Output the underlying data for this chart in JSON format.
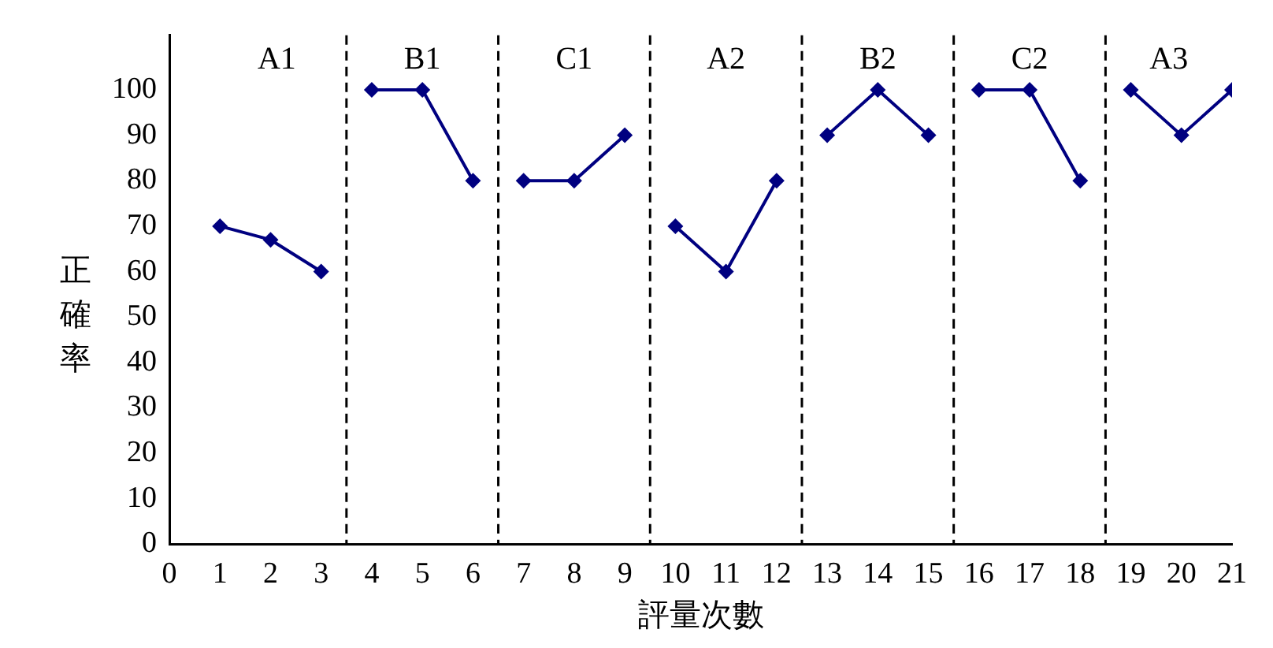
{
  "chart_data": {
    "type": "line",
    "ylabel": "正確率",
    "xlabel": "評量次數",
    "xlim": [
      0,
      21
    ],
    "xticks": [
      0,
      1,
      2,
      3,
      4,
      5,
      6,
      7,
      8,
      9,
      10,
      11,
      12,
      13,
      14,
      15,
      16,
      17,
      18,
      19,
      20,
      21
    ],
    "ylim": [
      0,
      112
    ],
    "yticks": [
      0,
      10,
      20,
      30,
      40,
      50,
      60,
      70,
      80,
      90,
      100
    ],
    "series": [
      {
        "color": "#000080",
        "x": [
          1,
          2,
          3
        ],
        "values": [
          70,
          67,
          60
        ]
      },
      {
        "color": "#000080",
        "x": [
          4,
          5,
          6
        ],
        "values": [
          100,
          100,
          80
        ]
      },
      {
        "color": "#000080",
        "x": [
          7,
          8,
          9
        ],
        "values": [
          80,
          80,
          90
        ]
      },
      {
        "color": "#000080",
        "x": [
          10,
          11,
          12
        ],
        "values": [
          70,
          60,
          80
        ]
      },
      {
        "color": "#000080",
        "x": [
          13,
          14,
          15
        ],
        "values": [
          90,
          100,
          90
        ]
      },
      {
        "color": "#000080",
        "x": [
          16,
          17,
          18
        ],
        "values": [
          100,
          100,
          80
        ]
      },
      {
        "color": "#000080",
        "x": [
          19,
          20,
          21
        ],
        "values": [
          100,
          90,
          100
        ]
      }
    ],
    "ref_lines": [
      {
        "axis": "x",
        "value": 3.5,
        "color": "#000000",
        "line_style": "dashed"
      },
      {
        "axis": "x",
        "value": 6.5,
        "color": "#000000",
        "line_style": "dashed"
      },
      {
        "axis": "x",
        "value": 9.5,
        "color": "#000000",
        "line_style": "dashed"
      },
      {
        "axis": "x",
        "value": 12.5,
        "color": "#000000",
        "line_style": "dashed"
      },
      {
        "axis": "x",
        "value": 15.5,
        "color": "#000000",
        "line_style": "dashed"
      },
      {
        "axis": "x",
        "value": 18.5,
        "color": "#000000",
        "line_style": "dashed"
      }
    ],
    "annotations": [
      "A1",
      "B1",
      "C1",
      "A2",
      "B2",
      "C2",
      "A3"
    ],
    "marker": "diamond",
    "line_style": "solid",
    "grid": false,
    "legend": false
  }
}
